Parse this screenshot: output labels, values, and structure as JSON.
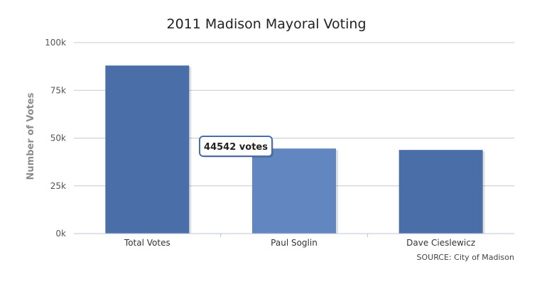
{
  "chart_data": {
    "type": "bar",
    "title": "2011 Madison Mayoral Voting",
    "xlabel": "",
    "ylabel": "Number of Votes",
    "ylim": [
      0,
      100000
    ],
    "yticks": [
      0,
      25000,
      50000,
      75000,
      100000
    ],
    "ytick_labels": [
      "0k",
      "25k",
      "50k",
      "75k",
      "100k"
    ],
    "categories": [
      "Total Votes",
      "Paul Soglin",
      "Dave Cieslewicz"
    ],
    "values": [
      88000,
      44542,
      43800
    ],
    "grid": true,
    "legend": "none",
    "source": "SOURCE: City of Madison",
    "tooltip": {
      "category": "Paul Soglin",
      "text": "44542 votes"
    },
    "colors": {
      "bar": "#4a6ea8",
      "bar_highlight": "#6186c0",
      "grid": "#c8c8c8",
      "axis": "#b8c3d6",
      "tooltip_border": "#4a6ea8"
    }
  }
}
